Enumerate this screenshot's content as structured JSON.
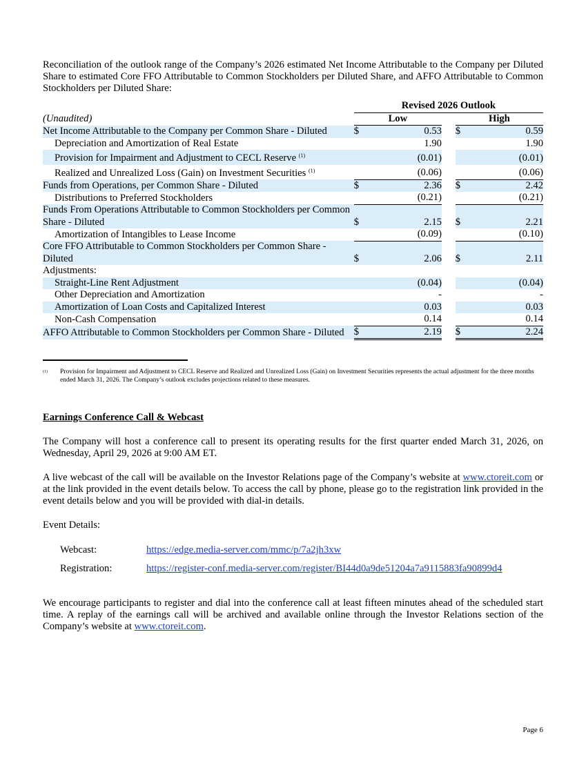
{
  "intro": "Reconciliation of the outlook range of the Company’s 2026 estimated Net Income Attributable to the Company per Diluted Share to estimated Core FFO Attributable to Common Stockholders per Diluted Share, and AFFO Attributable to Common Stockholders per Diluted Share:",
  "table": {
    "group_header": "Revised 2026 Outlook",
    "unaudited": "(Unaudited)",
    "columns": [
      "Low",
      "High"
    ],
    "rows": [
      {
        "label": "Net Income Attributable to the Company per Common Share - Diluted",
        "low_sign": "$",
        "low": "0.53",
        "high_sign": "$",
        "high": "0.59"
      },
      {
        "label": "Depreciation and Amortization of Real Estate",
        "low": "1.90",
        "high": "1.90"
      },
      {
        "label": "Provision for Impairment and Adjustment to CECL Reserve",
        "note": "(1)",
        "low": "(0.01)",
        "high": "(0.01)"
      },
      {
        "label": "Realized and Unrealized Loss (Gain) on Investment Securities",
        "note": "(1)",
        "low": "(0.06)",
        "high": "(0.06)"
      },
      {
        "label": "Funds from Operations, per Common Share - Diluted",
        "low_sign": "$",
        "low": "2.36",
        "high_sign": "$",
        "high": "2.42"
      },
      {
        "label": "Distributions to Preferred Stockholders",
        "low": "(0.21)",
        "high": "(0.21)"
      },
      {
        "label": "Funds From Operations Attributable to Common Stockholders per Common Share - Diluted",
        "low_sign": "$",
        "low": "2.15",
        "high_sign": "$",
        "high": "2.21"
      },
      {
        "label": "Amortization of Intangibles to Lease Income",
        "low": "(0.09)",
        "high": "(0.10)"
      },
      {
        "label": "Core FFO Attributable to Common Stockholders per Common Share - Diluted",
        "low_sign": "$",
        "low": "2.06",
        "high_sign": "$",
        "high": "2.11"
      },
      {
        "label": "Adjustments:"
      },
      {
        "label": "Straight-Line Rent Adjustment",
        "low": "(0.04)",
        "high": "(0.04)"
      },
      {
        "label": "Other Depreciation and Amortization",
        "low": "-",
        "high": "-"
      },
      {
        "label": "Amortization of Loan Costs and Capitalized Interest",
        "low": "0.03",
        "high": "0.03"
      },
      {
        "label": "Non-Cash Compensation",
        "low": "0.14",
        "high": "0.14"
      },
      {
        "label": "AFFO Attributable to Common Stockholders per Common Share - Diluted",
        "low_sign": "$",
        "low": "2.19",
        "high_sign": "$",
        "high": "2.24"
      }
    ]
  },
  "footnote": {
    "marker": "(1)",
    "text": "Provision for Impairment and Adjustment to CECL Reserve and Realized and Unrealized Loss (Gain) on Investment Securities represents the actual adjustment for the three months ended March 31, 2026. The Company’s outlook excludes projections related to these measures."
  },
  "section_title": "Earnings Conference Call & Webcast",
  "paragraphs": [
    {
      "before": "The Company will host a conference call to present its operating results for the first quarter ended March 31, 2026, on Wednesday, April 29, 2026 at 9:00 AM ET."
    },
    {
      "before": "A live webcast of the call will be available on the Investor Relations page of the Company’s website at ",
      "link": "www.ctoreit.com",
      "after": " or at the link provided in the event details below. To access the call by phone, please go to the registration link provided in the event details below and you will be provided with dial-in details."
    },
    {
      "before": "Event Details:"
    }
  ],
  "event_details": [
    {
      "label": "Webcast:",
      "url": "https://edge.media-server.com/mmc/p/7a2jh3xw"
    },
    {
      "label": "Registration:",
      "url": "https://register-conf.media-server.com/register/BI44d0a9de51204a7a9115883fa90899d4"
    }
  ],
  "closing": {
    "before": "We encourage participants to register and dial into the conference call at least fifteen minutes ahead of the scheduled start time. A replay of the earnings call will be archived and available online through the Investor Relations section of the Company’s website at ",
    "link": "www.ctoreit.com",
    "after": "."
  },
  "page_number": "Page 6"
}
